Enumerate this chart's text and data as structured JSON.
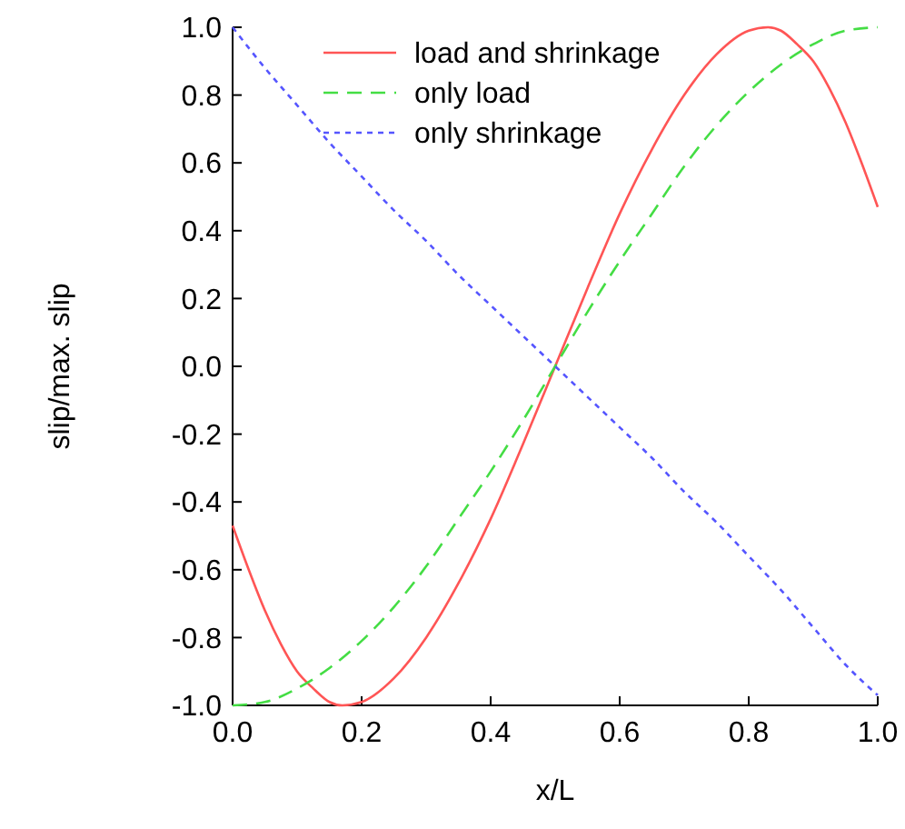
{
  "chart_data": {
    "type": "line",
    "xlabel": "x/L",
    "ylabel": "slip/max. slip",
    "xlim": [
      0,
      1
    ],
    "ylim": [
      -1,
      1
    ],
    "xticks": [
      {
        "value": 0,
        "label": "0.0"
      },
      0.2,
      0.4,
      0.6,
      0.8,
      {
        "value": 1,
        "label": "1.0"
      }
    ],
    "yticks": [
      {
        "value": -1,
        "label": "-1.0"
      },
      -0.8,
      -0.6,
      -0.4,
      -0.2,
      {
        "value": 0,
        "label": "0.0"
      },
      0.2,
      0.4,
      0.6,
      0.8,
      {
        "value": 1,
        "label": "1.0"
      }
    ],
    "grid": false,
    "legend": "top left",
    "marker": "none",
    "series": [
      {
        "name": "load and shrinkage",
        "color": "#ff5555",
        "line_style": "solid",
        "x": [
          0,
          0.025,
          0.05,
          0.075,
          0.1,
          0.125,
          0.15,
          0.17,
          0.2,
          0.25,
          0.3,
          0.35,
          0.4,
          0.45,
          0.5,
          0.55,
          0.6,
          0.65,
          0.7,
          0.75,
          0.8,
          0.83,
          0.85,
          0.875,
          0.9,
          0.925,
          0.95,
          0.975,
          1
        ],
        "values": [
          -0.47,
          -0.6,
          -0.72,
          -0.82,
          -0.9,
          -0.95,
          -0.99,
          -1.0,
          -0.99,
          -0.92,
          -0.8,
          -0.64,
          -0.45,
          -0.23,
          0,
          0.23,
          0.45,
          0.64,
          0.8,
          0.92,
          0.99,
          1.0,
          0.99,
          0.95,
          0.9,
          0.82,
          0.72,
          0.6,
          0.47
        ]
      },
      {
        "name": "only load",
        "color": "#44dd44",
        "line_style": "dashed",
        "x": [
          0,
          0.05,
          0.1,
          0.15,
          0.2,
          0.25,
          0.3,
          0.35,
          0.4,
          0.45,
          0.5,
          0.55,
          0.6,
          0.65,
          0.7,
          0.75,
          0.8,
          0.85,
          0.9,
          0.95,
          1
        ],
        "values": [
          -1,
          -0.99,
          -0.95,
          -0.89,
          -0.81,
          -0.71,
          -0.59,
          -0.45,
          -0.31,
          -0.16,
          0,
          0.16,
          0.31,
          0.45,
          0.59,
          0.71,
          0.81,
          0.89,
          0.95,
          0.99,
          1
        ]
      },
      {
        "name": "only shrinkage",
        "color": "#5555ff",
        "line_style": "dotted",
        "x": [
          0,
          0.05,
          0.1,
          0.15,
          0.2,
          0.25,
          0.3,
          0.35,
          0.4,
          0.45,
          0.5,
          0.55,
          0.6,
          0.65,
          0.7,
          0.75,
          0.8,
          0.85,
          0.9,
          0.95,
          1
        ],
        "values": [
          1,
          0.88,
          0.77,
          0.66,
          0.56,
          0.46,
          0.37,
          0.27,
          0.18,
          0.09,
          0,
          -0.09,
          -0.18,
          -0.27,
          -0.37,
          -0.46,
          -0.56,
          -0.66,
          -0.77,
          -0.88,
          -0.97
        ]
      }
    ]
  }
}
